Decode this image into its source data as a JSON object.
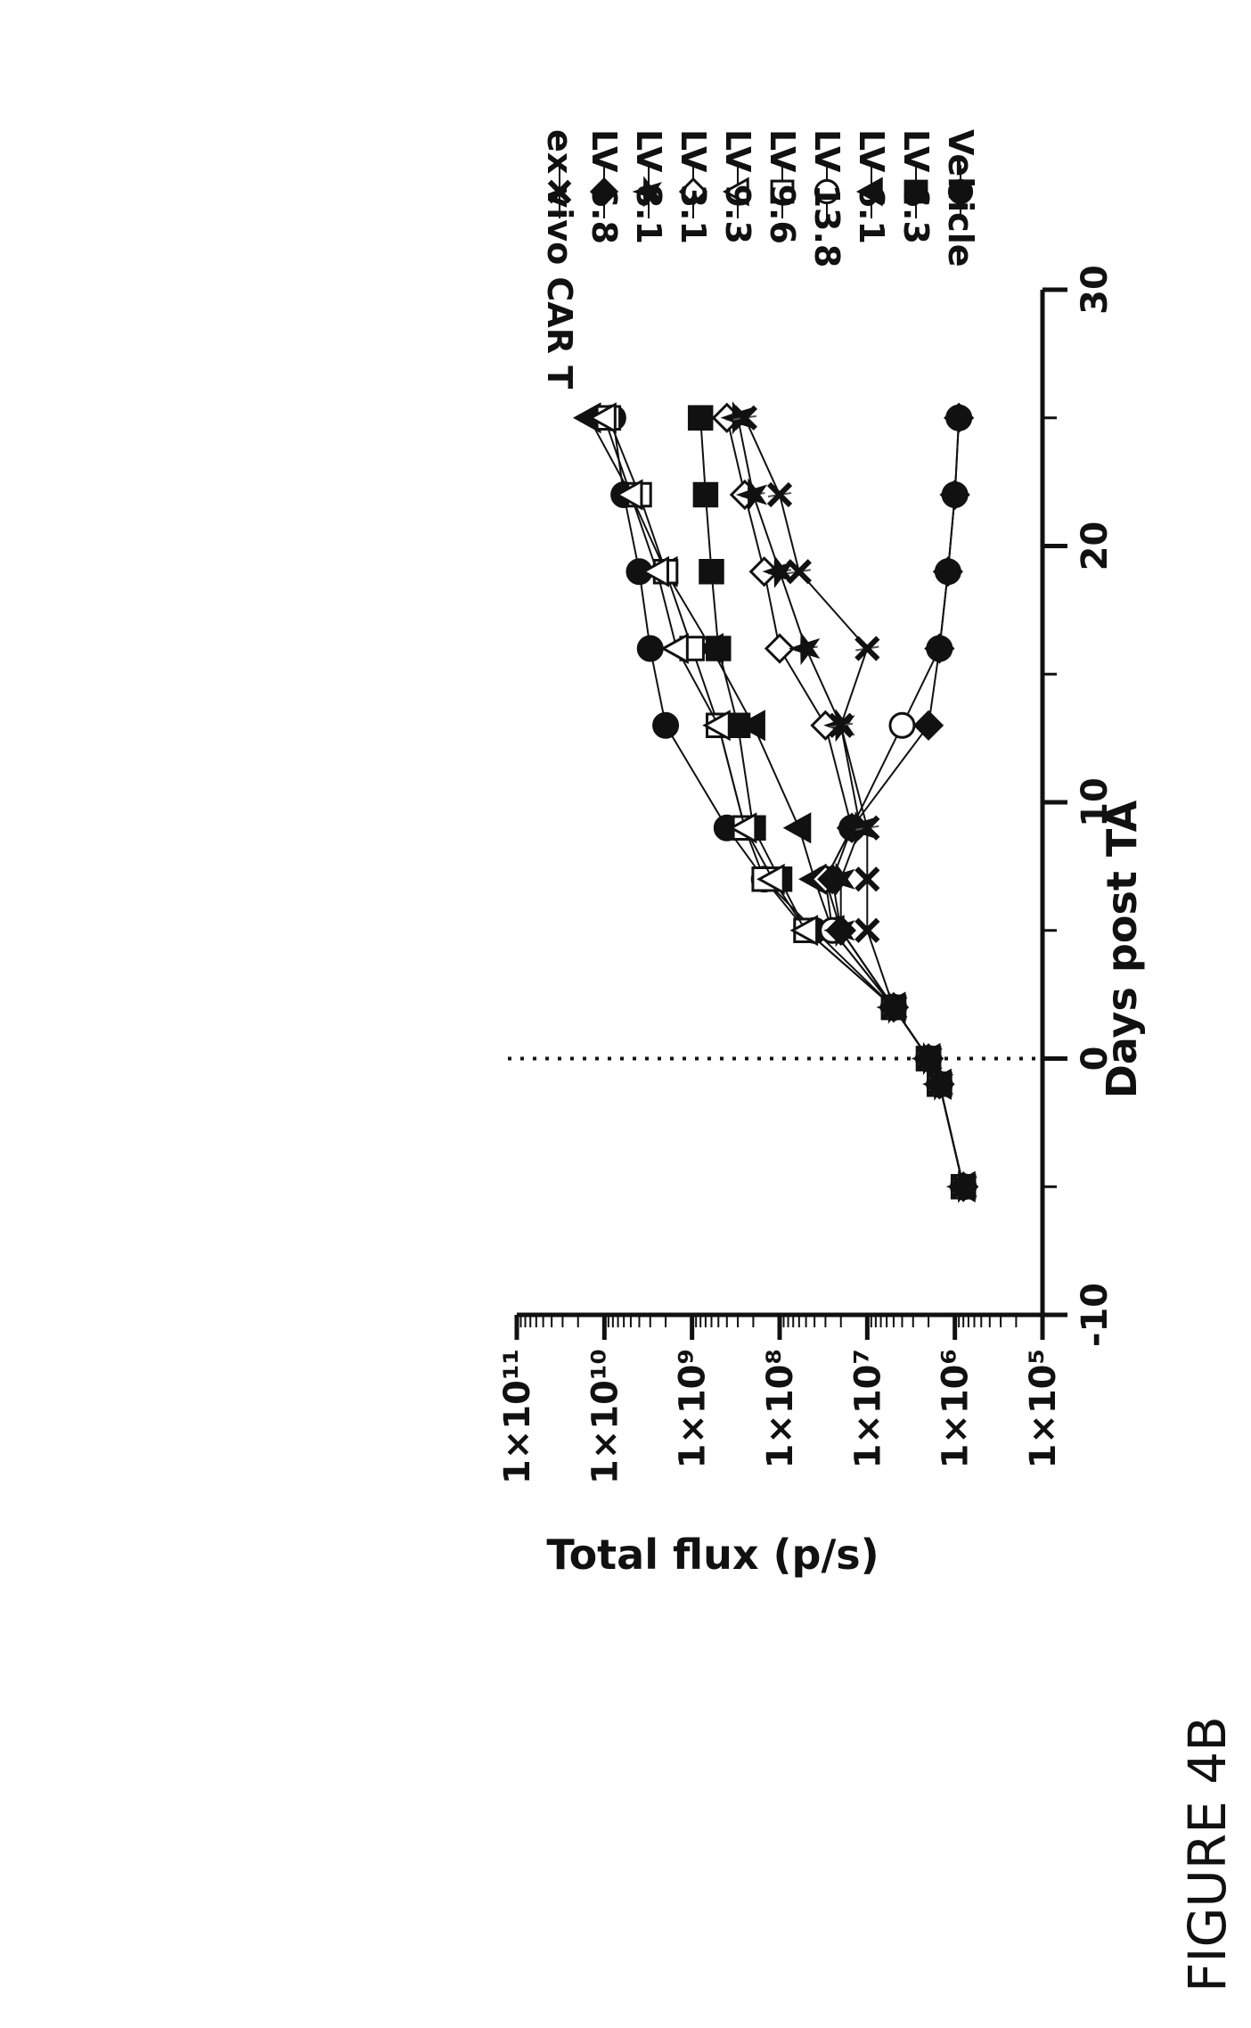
{
  "figure_label": "FIGURE 4B",
  "chart_data": {
    "type": "line",
    "title": "",
    "xlabel": "Days post TA",
    "ylabel": "Total flux (p/s)",
    "x_scale": "linear",
    "y_scale": "log",
    "xlim": [
      -10,
      30
    ],
    "ylim": [
      100000,
      100000000000
    ],
    "x_ticks": [
      "-10",
      "0",
      "10",
      "20",
      "30"
    ],
    "y_ticks": [
      "1×10⁵",
      "1×10⁶",
      "1×10⁷",
      "1×10⁸",
      "1×10⁹",
      "1×10¹⁰",
      "1×10¹¹"
    ],
    "vertical_reference_line_x": 0,
    "grid": false,
    "legend_position": "right",
    "series": [
      {
        "name": "Vehicle",
        "marker": "circle-filled",
        "x": [
          -5,
          -1,
          0,
          2,
          5,
          7,
          9,
          13,
          16,
          19,
          22,
          25
        ],
        "y": [
          800000,
          1500000,
          2000000,
          5000000,
          40000000,
          150000000,
          400000000,
          2000000000,
          3000000000,
          4000000000,
          6000000000,
          8000000000
        ]
      },
      {
        "name": "LV 6.3",
        "marker": "square-filled",
        "x": [
          -5,
          -1,
          0,
          2,
          5,
          7,
          9,
          13,
          16,
          19,
          22,
          25
        ],
        "y": [
          800000,
          1500000,
          2000000,
          5000000,
          50000000,
          100000000,
          200000000,
          300000000,
          500000000,
          600000000,
          700000000,
          800000000
        ]
      },
      {
        "name": "LV 6.1",
        "marker": "triangle-filled",
        "x": [
          -5,
          -1,
          0,
          2,
          5,
          7,
          9,
          13,
          16,
          19,
          22,
          25
        ],
        "y": [
          800000,
          1500000,
          2000000,
          5000000,
          25000000,
          40000000,
          60000000,
          200000000,
          600000000,
          2000000000,
          5000000000,
          15000000000
        ]
      },
      {
        "name": "LV 13.8",
        "marker": "circle-open",
        "x": [
          -5,
          -1,
          0,
          2,
          5,
          7,
          9,
          13,
          16,
          19,
          22,
          25
        ],
        "y": [
          800000,
          1500000,
          2000000,
          5000000,
          25000000,
          30000000,
          15000000,
          4000000,
          1500000,
          1200000,
          1000000,
          900000
        ]
      },
      {
        "name": "LV 9.6",
        "marker": "square-open",
        "x": [
          -5,
          -1,
          0,
          2,
          5,
          7,
          9,
          13,
          16,
          19,
          22,
          25
        ],
        "y": [
          800000,
          1500000,
          2000000,
          5000000,
          50000000,
          150000000,
          250000000,
          500000000,
          1000000000,
          2000000000,
          4000000000,
          9000000000
        ]
      },
      {
        "name": "LV 9.3",
        "marker": "triangle-open",
        "x": [
          -5,
          -1,
          0,
          2,
          5,
          7,
          9,
          13,
          16,
          19,
          22,
          25
        ],
        "y": [
          800000,
          1500000,
          2000000,
          5000000,
          50000000,
          120000000,
          250000000,
          500000000,
          1500000000,
          2500000000,
          5000000000,
          10000000000
        ]
      },
      {
        "name": "LV 3.1",
        "marker": "diamond-open",
        "x": [
          -5,
          -1,
          0,
          2,
          5,
          7,
          9,
          13,
          16,
          19,
          22,
          25
        ],
        "y": [
          800000,
          1500000,
          2000000,
          5000000,
          20000000,
          30000000,
          15000000,
          30000000,
          100000000,
          150000000,
          250000000,
          400000000
        ]
      },
      {
        "name": "LV 8.1",
        "marker": "star",
        "x": [
          -5,
          -1,
          0,
          2,
          5,
          7,
          9,
          13,
          16,
          19,
          22,
          25
        ],
        "y": [
          800000,
          1500000,
          2000000,
          5000000,
          20000000,
          20000000,
          12000000,
          20000000,
          50000000,
          100000000,
          200000000,
          300000000
        ]
      },
      {
        "name": "LV 6.8",
        "marker": "diamond-filled",
        "x": [
          -5,
          -1,
          0,
          2,
          5,
          7,
          9,
          13,
          16,
          19,
          22,
          25
        ],
        "y": [
          800000,
          1500000,
          2000000,
          5000000,
          20000000,
          25000000,
          15000000,
          2000000,
          1500000,
          1200000,
          1000000,
          900000
        ]
      },
      {
        "name": "ex vivo CAR T",
        "marker": "x",
        "x": [
          -5,
          -1,
          0,
          2,
          5,
          7,
          9,
          13,
          16,
          19,
          22,
          25
        ],
        "y": [
          800000,
          1500000,
          2000000,
          5000000,
          10000000,
          10000000,
          10000000,
          20000000,
          10000000,
          60000000,
          100000000,
          250000000
        ]
      }
    ]
  }
}
